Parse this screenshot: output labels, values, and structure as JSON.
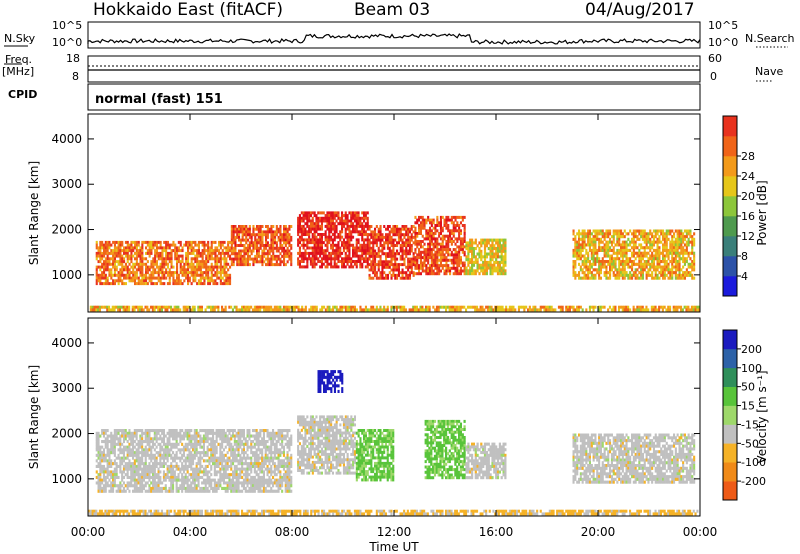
{
  "header": {
    "station": "Hokkaido East (fitACF)",
    "beam": "Beam 03",
    "date": "04/Aug/2017"
  },
  "params_panel": {
    "nsky_label": "N.Sky",
    "nsearch_label": "N.Search",
    "nsky_ticks": [
      "10^5",
      "10^0"
    ],
    "nsearch_ticks": [
      "10^5",
      "10^0"
    ],
    "freq_label_1": "Freq.",
    "freq_label_2": "[MHz]",
    "freq_ticks": [
      "18",
      "8"
    ],
    "nave_label": "Nave",
    "nave_ticks": [
      "60",
      "0"
    ],
    "cpid_label": "CPID",
    "cpid_value": "normal (fast) 151"
  },
  "chart_data": [
    {
      "type": "heatmap",
      "panel": "power",
      "ylabel": "Slant Range [km]",
      "ylim": [
        180,
        4550
      ],
      "yticks": [
        1000,
        2000,
        3000,
        4000
      ],
      "xlim_hours": [
        0,
        24
      ],
      "colorbar": {
        "label": "Power [dB]",
        "range": [
          0,
          32
        ],
        "ticks": [
          "4",
          "8",
          "12",
          "16",
          "20",
          "24",
          "28"
        ],
        "colors": [
          "#1b1bdc",
          "#2c52a8",
          "#3a7f7a",
          "#4e9a4e",
          "#8cc63a",
          "#e6c619",
          "#f39a1a",
          "#f06418",
          "#e8321e",
          "#e0101c"
        ]
      },
      "echo_regions": [
        {
          "t": [
            0.3,
            5.6
          ],
          "range": [
            780,
            1750
          ],
          "power_db": 24
        },
        {
          "t": [
            5.6,
            8.0
          ],
          "range": [
            1200,
            2100
          ],
          "power_db": 26
        },
        {
          "t": [
            8.2,
            11.0
          ],
          "range": [
            1150,
            2400
          ],
          "power_db": 30
        },
        {
          "t": [
            11.0,
            12.8
          ],
          "range": [
            900,
            2100
          ],
          "power_db": 28
        },
        {
          "t": [
            12.8,
            14.8
          ],
          "range": [
            1000,
            2300
          ],
          "power_db": 27
        },
        {
          "t": [
            14.8,
            16.4
          ],
          "range": [
            1000,
            1800
          ],
          "power_db": 18
        },
        {
          "t": [
            19.0,
            23.8
          ],
          "range": [
            900,
            2000
          ],
          "power_db": 20
        },
        {
          "t": [
            0,
            24
          ],
          "range": [
            200,
            320
          ],
          "power_db": 20
        }
      ]
    },
    {
      "type": "heatmap",
      "panel": "velocity",
      "ylabel": "Slant Range [km]",
      "xlabel": "Time UT",
      "ylim": [
        180,
        4550
      ],
      "yticks": [
        1000,
        2000,
        3000,
        4000
      ],
      "xlim_hours": [
        0,
        24
      ],
      "xticks": [
        "00:00",
        "04:00",
        "08:00",
        "12:00",
        "16:00",
        "20:00",
        "00:00"
      ],
      "colorbar": {
        "label": "Velocity [m s⁻¹]",
        "ticks": [
          "200",
          "100",
          "50",
          "15",
          "-15",
          "-50",
          "-100",
          "-200"
        ],
        "colors": [
          "#1b1bbf",
          "#2d62a8",
          "#2f8f5a",
          "#58c43a",
          "#9ed86a",
          "#c0c0c0",
          "#f5b227",
          "#f08a18",
          "#ee5a16",
          "#e0101c"
        ]
      },
      "echo_regions": [
        {
          "t": [
            0.3,
            8.0
          ],
          "range": [
            700,
            2100
          ],
          "velocity": 0
        },
        {
          "t": [
            8.2,
            10.5
          ],
          "range": [
            1100,
            2400
          ],
          "velocity": 0
        },
        {
          "t": [
            9.0,
            10.0
          ],
          "range": [
            2900,
            3400
          ],
          "velocity": 220
        },
        {
          "t": [
            10.5,
            12.0
          ],
          "range": [
            950,
            2100
          ],
          "velocity": 30
        },
        {
          "t": [
            13.2,
            14.8
          ],
          "range": [
            1000,
            2300
          ],
          "velocity": 30
        },
        {
          "t": [
            14.8,
            16.4
          ],
          "range": [
            1000,
            1800
          ],
          "velocity": 0
        },
        {
          "t": [
            19.0,
            23.8
          ],
          "range": [
            900,
            2000
          ],
          "velocity": 0
        },
        {
          "t": [
            0,
            24
          ],
          "range": [
            200,
            320
          ],
          "velocity": -30
        }
      ]
    }
  ]
}
